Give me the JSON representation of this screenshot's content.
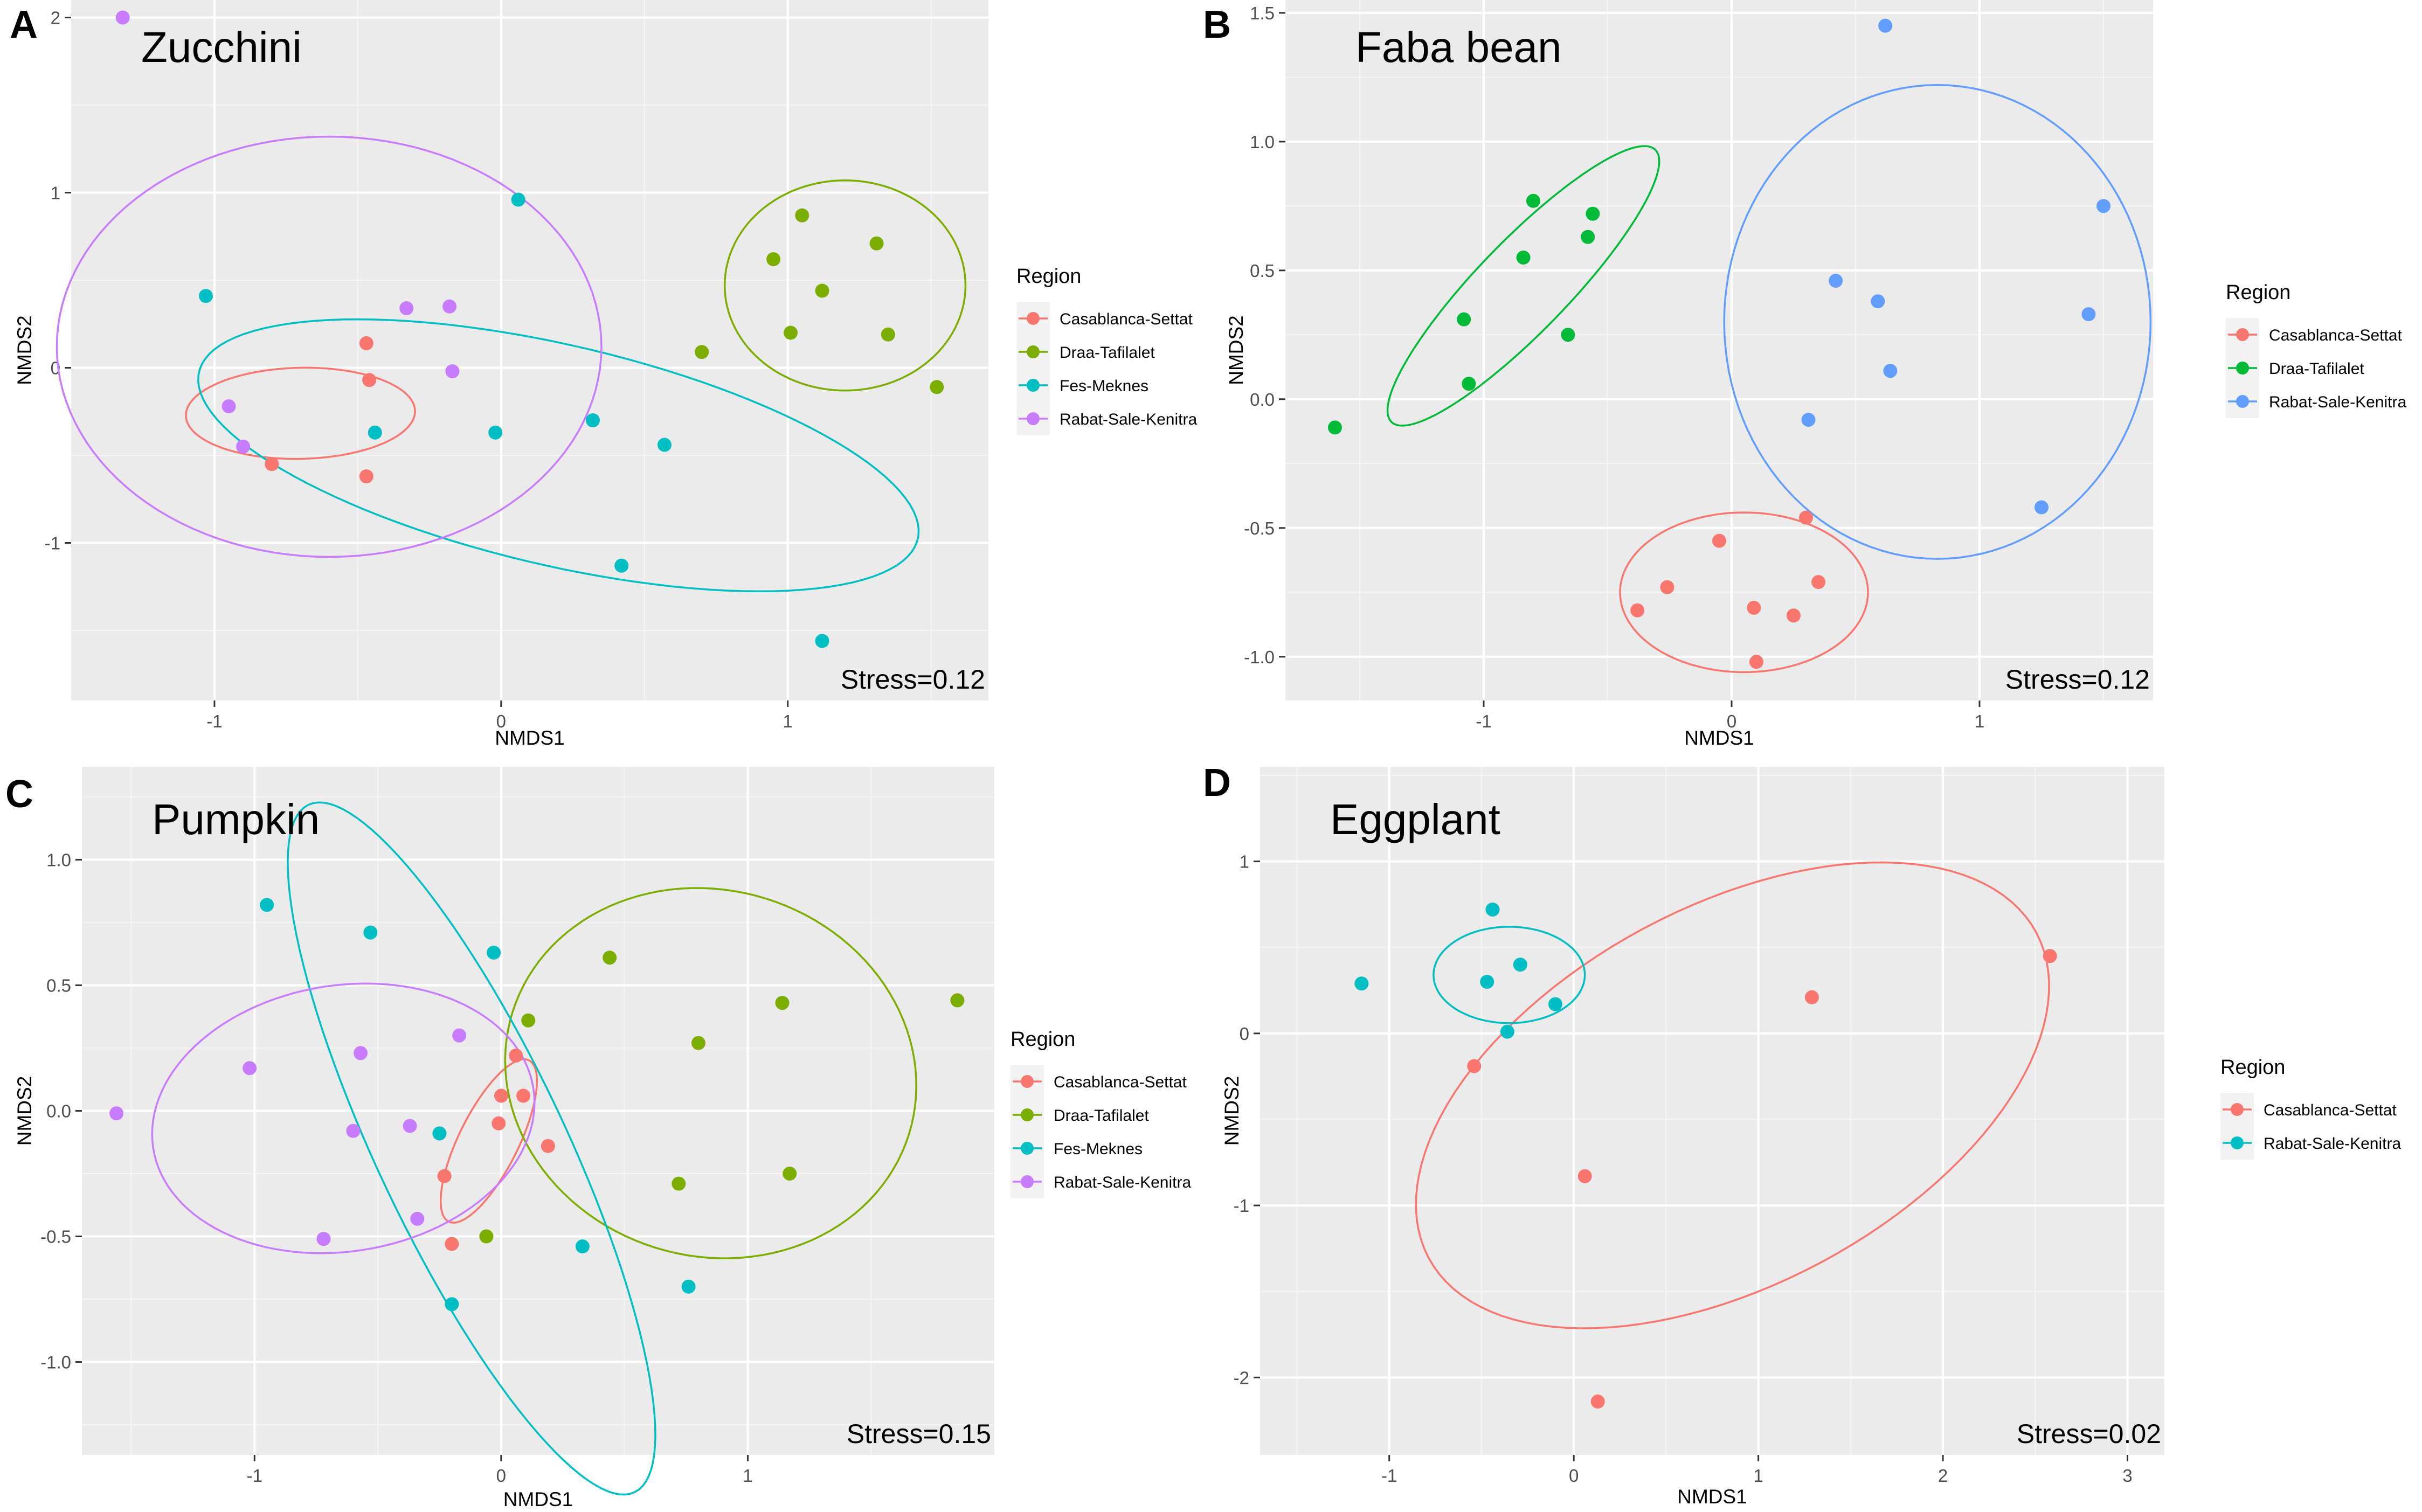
{
  "figure": {
    "panel_letters": [
      "A",
      "B",
      "C",
      "D"
    ]
  },
  "colors": {
    "Casablanca-Settat": "#F8766D",
    "Draa-Tafilalet": "#7CAE00",
    "Fes-Meknes": "#00BFC4",
    "Rabat-Sale-Kenitra": "#C77CFF",
    "Rabat-Sale-Kenitra (B)": "#619CFF",
    "Draa-Tafilalet (B)": "#00BA38",
    "Rabat-Sale-Kenitra (D)": "#00BFC4"
  },
  "chart_data": [
    {
      "type": "scatter",
      "panel": "A",
      "title": "Zucchini",
      "xlabel": "NMDS1",
      "ylabel": "NMDS2",
      "stress_label": "Stress=0.12",
      "legend_title": "Region",
      "legend_position": "right",
      "xlim": [
        -1.5,
        1.7
      ],
      "ylim": [
        -1.9,
        2.1
      ],
      "xticks": [
        -1,
        0,
        1
      ],
      "yticks": [
        -1,
        0,
        1,
        2
      ],
      "series": [
        {
          "name": "Casablanca-Settat",
          "color": "#F8766D",
          "points": [
            [
              -0.47,
              0.14
            ],
            [
              -0.46,
              -0.07
            ],
            [
              -0.8,
              -0.55
            ],
            [
              -0.47,
              -0.62
            ]
          ],
          "ellipse": {
            "cx": -0.7,
            "cy": -0.26,
            "rx": 0.4,
            "ry": 0.26,
            "angle": 0.05
          }
        },
        {
          "name": "Draa-Tafilalet",
          "color": "#7CAE00",
          "points": [
            [
              0.95,
              0.62
            ],
            [
              1.05,
              0.87
            ],
            [
              1.12,
              0.44
            ],
            [
              1.31,
              0.71
            ],
            [
              1.01,
              0.2
            ],
            [
              1.35,
              0.19
            ],
            [
              0.7,
              0.09
            ],
            [
              1.52,
              -0.11
            ]
          ],
          "ellipse": {
            "cx": 1.2,
            "cy": 0.47,
            "rx": 0.42,
            "ry": 0.6,
            "angle": 0.0
          }
        },
        {
          "name": "Fes-Meknes",
          "color": "#00BFC4",
          "points": [
            [
              0.06,
              0.96
            ],
            [
              -1.03,
              0.41
            ],
            [
              -0.44,
              -0.37
            ],
            [
              -0.02,
              -0.37
            ],
            [
              0.32,
              -0.3
            ],
            [
              0.57,
              -0.44
            ],
            [
              0.42,
              -1.13
            ],
            [
              1.12,
              -1.56
            ]
          ],
          "ellipse": {
            "cx": 0.2,
            "cy": -0.5,
            "rx": 1.35,
            "ry": 0.6,
            "angle": -0.42
          }
        },
        {
          "name": "Rabat-Sale-Kenitra",
          "color": "#C77CFF",
          "points": [
            [
              -1.32,
              2.0
            ],
            [
              -0.33,
              0.34
            ],
            [
              -0.18,
              0.35
            ],
            [
              -0.17,
              -0.02
            ],
            [
              -0.95,
              -0.22
            ],
            [
              -0.9,
              -0.45
            ]
          ],
          "ellipse": {
            "cx": -0.6,
            "cy": 0.12,
            "rx": 0.95,
            "ry": 1.2,
            "angle": 0.0
          }
        }
      ]
    },
    {
      "type": "scatter",
      "panel": "B",
      "title": "Faba bean",
      "xlabel": "NMDS1",
      "ylabel": "NMDS2",
      "stress_label": "Stress=0.12",
      "legend_title": "Region",
      "legend_position": "right",
      "xlim": [
        -1.8,
        1.7
      ],
      "ylim": [
        -1.17,
        1.55
      ],
      "xticks": [
        -1,
        0,
        1
      ],
      "yticks": [
        -1.0,
        -0.5,
        0.0,
        0.5,
        1.0,
        1.5
      ],
      "series": [
        {
          "name": "Casablanca-Settat",
          "color": "#F8766D",
          "points": [
            [
              -0.05,
              -0.55
            ],
            [
              0.3,
              -0.46
            ],
            [
              -0.26,
              -0.73
            ],
            [
              0.35,
              -0.71
            ],
            [
              -0.38,
              -0.82
            ],
            [
              0.09,
              -0.81
            ],
            [
              0.25,
              -0.84
            ],
            [
              0.1,
              -1.02
            ]
          ],
          "ellipse": {
            "cx": 0.05,
            "cy": -0.75,
            "rx": 0.5,
            "ry": 0.31,
            "angle": 0.0
          }
        },
        {
          "name": "Draa-Tafilalet",
          "color": "#00BA38",
          "points": [
            [
              -0.8,
              0.77
            ],
            [
              -0.56,
              0.72
            ],
            [
              -0.58,
              0.63
            ],
            [
              -0.84,
              0.55
            ],
            [
              -1.08,
              0.31
            ],
            [
              -0.66,
              0.25
            ],
            [
              -1.06,
              0.06
            ],
            [
              -1.6,
              -0.11
            ]
          ],
          "ellipse": {
            "cx": -0.84,
            "cy": 0.44,
            "rx": 0.75,
            "ry": 0.18,
            "angle": 0.78
          }
        },
        {
          "name": "Rabat-Sale-Kenitra",
          "color": "#619CFF",
          "points": [
            [
              0.62,
              1.45
            ],
            [
              1.5,
              0.75
            ],
            [
              0.42,
              0.46
            ],
            [
              0.59,
              0.38
            ],
            [
              1.44,
              0.33
            ],
            [
              0.64,
              0.11
            ],
            [
              0.31,
              -0.08
            ],
            [
              1.25,
              -0.42
            ]
          ],
          "ellipse": {
            "cx": 0.83,
            "cy": 0.3,
            "rx": 0.86,
            "ry": 0.92,
            "angle": 0.0
          }
        }
      ]
    },
    {
      "type": "scatter",
      "panel": "C",
      "title": "Pumpkin",
      "xlabel": "NMDS1",
      "ylabel": "NMDS2",
      "stress_label": "Stress=0.15",
      "legend_title": "Region",
      "legend_position": "right",
      "xlim": [
        -1.7,
        2.0
      ],
      "ylim": [
        -1.37,
        1.37
      ],
      "xticks": [
        -1,
        0,
        1
      ],
      "yticks": [
        -1.0,
        -0.5,
        0.0,
        0.5,
        1.0
      ],
      "series": [
        {
          "name": "Casablanca-Settat",
          "color": "#F8766D",
          "points": [
            [
              0.06,
              0.22
            ],
            [
              0.0,
              0.06
            ],
            [
              0.09,
              0.06
            ],
            [
              -0.01,
              -0.05
            ],
            [
              0.19,
              -0.14
            ],
            [
              -0.23,
              -0.26
            ],
            [
              -0.2,
              -0.53
            ]
          ],
          "ellipse": {
            "cx": -0.05,
            "cy": -0.12,
            "rx": 0.36,
            "ry": 0.12,
            "angle": 1.1
          }
        },
        {
          "name": "Draa-Tafilalet",
          "color": "#7CAE00",
          "points": [
            [
              0.44,
              0.61
            ],
            [
              1.85,
              0.44
            ],
            [
              1.14,
              0.43
            ],
            [
              0.11,
              0.36
            ],
            [
              0.8,
              0.27
            ],
            [
              0.72,
              -0.29
            ],
            [
              1.17,
              -0.25
            ],
            [
              -0.06,
              -0.5
            ]
          ],
          "ellipse": {
            "cx": 0.85,
            "cy": 0.15,
            "rx": 0.84,
            "ry": 0.73,
            "angle": -0.25
          }
        },
        {
          "name": "Fes-Meknes",
          "color": "#00BFC4",
          "points": [
            [
              -0.95,
              0.82
            ],
            [
              -0.53,
              0.71
            ],
            [
              -0.03,
              0.63
            ],
            [
              -0.25,
              -0.09
            ],
            [
              0.33,
              -0.54
            ],
            [
              0.76,
              -0.7
            ],
            [
              -0.2,
              -0.77
            ]
          ],
          "ellipse": {
            "cx": -0.12,
            "cy": -0.15,
            "rx": 1.52,
            "ry": 0.38,
            "angle": -1.12
          }
        },
        {
          "name": "Rabat-Sale-Kenitra",
          "color": "#C77CFF",
          "points": [
            [
              -0.57,
              0.23
            ],
            [
              -1.02,
              0.17
            ],
            [
              -0.17,
              0.3
            ],
            [
              -1.56,
              -0.01
            ],
            [
              -0.6,
              -0.08
            ],
            [
              -0.37,
              -0.06
            ],
            [
              -0.34,
              -0.43
            ],
            [
              -0.72,
              -0.51
            ]
          ],
          "ellipse": {
            "cx": -0.64,
            "cy": -0.03,
            "rx": 0.78,
            "ry": 0.53,
            "angle": 0.15
          }
        }
      ]
    },
    {
      "type": "scatter",
      "panel": "D",
      "title": "Eggplant",
      "xlabel": "NMDS1",
      "ylabel": "NMDS2",
      "stress_label": "Stress=0.02",
      "legend_title": "Region",
      "legend_position": "right",
      "xlim": [
        -1.7,
        3.2
      ],
      "ylim": [
        -2.45,
        1.55
      ],
      "xticks": [
        -1,
        0,
        1,
        2,
        3
      ],
      "yticks": [
        -2,
        -1,
        0,
        1
      ],
      "series": [
        {
          "name": "Casablanca-Settat",
          "color": "#F8766D",
          "points": [
            [
              2.58,
              0.45
            ],
            [
              1.29,
              0.21
            ],
            [
              -0.54,
              -0.19
            ],
            [
              0.06,
              -0.83
            ],
            [
              0.13,
              -2.14
            ]
          ],
          "ellipse": {
            "cx": 0.86,
            "cy": -0.36,
            "rx": 1.9,
            "ry": 1.08,
            "angle": 0.55
          }
        },
        {
          "name": "Rabat-Sale-Kenitra",
          "color": "#00BFC4",
          "points": [
            [
              -0.44,
              0.72
            ],
            [
              -1.15,
              0.29
            ],
            [
              -0.47,
              0.3
            ],
            [
              -0.29,
              0.4
            ],
            [
              -0.1,
              0.17
            ],
            [
              -0.36,
              0.01
            ]
          ],
          "ellipse": {
            "cx": -0.35,
            "cy": 0.34,
            "rx": 0.41,
            "ry": 0.28,
            "angle": 0.0
          }
        }
      ]
    }
  ]
}
